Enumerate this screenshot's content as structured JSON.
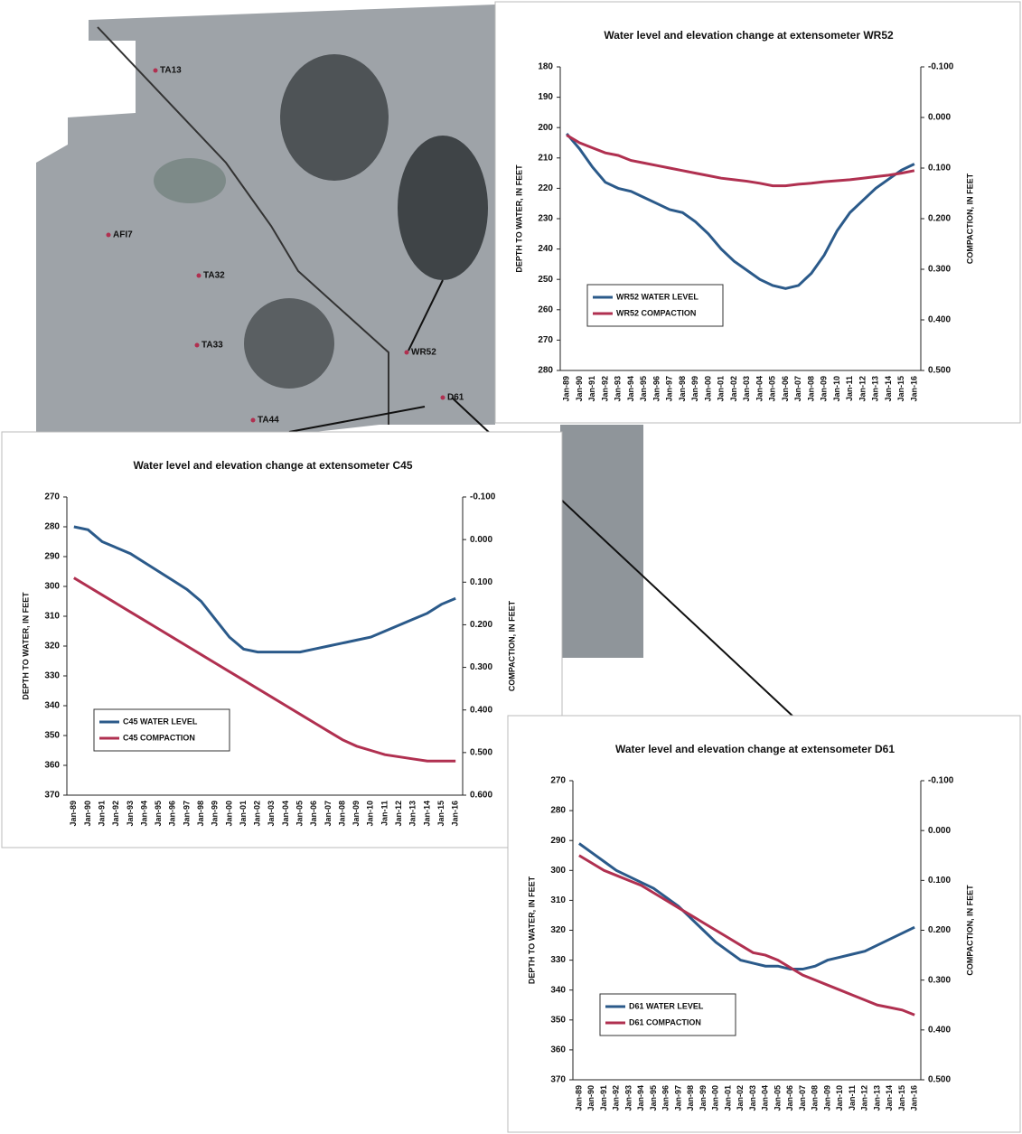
{
  "map": {
    "labels": [
      "TA13",
      "AFI7",
      "TA32",
      "TA33",
      "WR52",
      "D61",
      "TA44"
    ]
  },
  "chart_data": [
    {
      "type": "line",
      "title": "Water level and elevation change at extensometer WR52",
      "y_label": "DEPTH TO WATER, IN FEET",
      "y2_label": "COMPACTION, IN FEET",
      "categories": [
        "Jan-89",
        "Jan-90",
        "Jan-91",
        "Jan-92",
        "Jan-93",
        "Jan-94",
        "Jan-95",
        "Jan-96",
        "Jan-97",
        "Jan-98",
        "Jan-99",
        "Jan-00",
        "Jan-01",
        "Jan-02",
        "Jan-03",
        "Jan-04",
        "Jan-05",
        "Jan-06",
        "Jan-07",
        "Jan-08",
        "Jan-09",
        "Jan-10",
        "Jan-11",
        "Jan-12",
        "Jan-13",
        "Jan-14",
        "Jan-15",
        "Jan-16"
      ],
      "ylim": [
        180,
        280
      ],
      "yticks": [
        180,
        190,
        200,
        210,
        220,
        230,
        240,
        250,
        260,
        270,
        280
      ],
      "invert_y": true,
      "y2lim": [
        -0.1,
        0.5
      ],
      "y2ticks": [
        {
          "value": -0.1,
          "label": "-0.100"
        },
        {
          "value": 0,
          "label": "0.000"
        },
        {
          "value": 0.1,
          "label": "0.100"
        },
        {
          "value": 0.2,
          "label": "0.200"
        },
        {
          "value": 0.3,
          "label": "0.300"
        },
        {
          "value": 0.4,
          "label": "0.400"
        },
        {
          "value": 0.5,
          "label": "0.500"
        }
      ],
      "invert_y2": true,
      "legend": "lower left",
      "series": [
        {
          "name": "WR52 WATER LEVEL",
          "color": "#2b5a8a",
          "values": [
            202,
            207,
            213,
            218,
            220,
            221,
            223,
            225,
            227,
            228,
            231,
            235,
            240,
            244,
            247,
            250,
            252,
            253,
            252,
            248,
            242,
            234,
            228,
            224,
            220,
            217,
            214,
            212
          ]
        },
        {
          "name": "WR52 COMPACTION",
          "color": "#b03050",
          "axis": "y2",
          "values": [
            0.035,
            0.05,
            0.06,
            0.07,
            0.075,
            0.085,
            0.09,
            0.095,
            0.1,
            0.105,
            0.11,
            0.115,
            0.12,
            0.123,
            0.126,
            0.13,
            0.135,
            0.135,
            0.132,
            0.13,
            0.127,
            0.125,
            0.123,
            0.12,
            0.117,
            0.114,
            0.11,
            0.105
          ]
        }
      ]
    },
    {
      "type": "line",
      "title": "Water level and elevation change at extensometer C45",
      "y_label": "DEPTH TO WATER, IN FEET",
      "y2_label": "COMPACTION, IN FEET",
      "categories": [
        "Jan-89",
        "Jan-90",
        "Jan-91",
        "Jan-92",
        "Jan-93",
        "Jan-94",
        "Jan-95",
        "Jan-96",
        "Jan-97",
        "Jan-98",
        "Jan-99",
        "Jan-00",
        "Jan-01",
        "Jan-02",
        "Jan-03",
        "Jan-04",
        "Jan-05",
        "Jan-06",
        "Jan-07",
        "Jan-08",
        "Jan-09",
        "Jan-10",
        "Jan-11",
        "Jan-12",
        "Jan-13",
        "Jan-14",
        "Jan-15",
        "Jan-16"
      ],
      "ylim": [
        270,
        370
      ],
      "yticks": [
        270,
        280,
        290,
        300,
        310,
        320,
        330,
        340,
        350,
        360,
        370
      ],
      "invert_y": true,
      "y2lim": [
        -0.1,
        0.6
      ],
      "y2ticks": [
        {
          "value": -0.1,
          "label": "-0.100"
        },
        {
          "value": 0,
          "label": "0.000"
        },
        {
          "value": 0.1,
          "label": "0.100"
        },
        {
          "value": 0.2,
          "label": "0.200"
        },
        {
          "value": 0.3,
          "label": "0.300"
        },
        {
          "value": 0.4,
          "label": "0.400"
        },
        {
          "value": 0.5,
          "label": "0.500"
        },
        {
          "value": 0.6,
          "label": "0.600"
        }
      ],
      "invert_y2": true,
      "legend": "lower left",
      "series": [
        {
          "name": "C45 WATER LEVEL",
          "color": "#2b5a8a",
          "values": [
            280,
            281,
            285,
            287,
            289,
            292,
            295,
            298,
            301,
            305,
            311,
            317,
            321,
            322,
            322,
            322,
            322,
            321,
            320,
            319,
            318,
            317,
            315,
            313,
            311,
            309,
            306,
            304
          ]
        },
        {
          "name": "C45 COMPACTION",
          "color": "#b03050",
          "axis": "y2",
          "values": [
            0.09,
            0.11,
            0.13,
            0.15,
            0.17,
            0.19,
            0.21,
            0.23,
            0.25,
            0.27,
            0.29,
            0.31,
            0.33,
            0.35,
            0.37,
            0.39,
            0.41,
            0.43,
            0.45,
            0.47,
            0.485,
            0.495,
            0.505,
            0.51,
            0.515,
            0.52,
            0.52,
            0.52
          ]
        }
      ]
    },
    {
      "type": "line",
      "title": "Water level and elevation change at extensometer D61",
      "y_label": "DEPTH TO WATER, IN FEET",
      "y2_label": "COMPACTION, IN FEET",
      "categories": [
        "Jan-89",
        "Jan-90",
        "Jan-91",
        "Jan-92",
        "Jan-93",
        "Jan-94",
        "Jan-95",
        "Jan-96",
        "Jan-97",
        "Jan-98",
        "Jan-99",
        "Jan-00",
        "Jan-01",
        "Jan-02",
        "Jan-03",
        "Jan-04",
        "Jan-05",
        "Jan-06",
        "Jan-07",
        "Jan-08",
        "Jan-09",
        "Jan-10",
        "Jan-11",
        "Jan-12",
        "Jan-13",
        "Jan-14",
        "Jan-15",
        "Jan-16"
      ],
      "ylim": [
        270,
        370
      ],
      "yticks": [
        270,
        280,
        290,
        300,
        310,
        320,
        330,
        340,
        350,
        360,
        370
      ],
      "invert_y": true,
      "y2lim": [
        -0.1,
        0.5
      ],
      "y2ticks": [
        {
          "value": -0.1,
          "label": "-0.100"
        },
        {
          "value": 0,
          "label": "0.000"
        },
        {
          "value": 0.1,
          "label": "0.100"
        },
        {
          "value": 0.2,
          "label": "0.200"
        },
        {
          "value": 0.3,
          "label": "0.300"
        },
        {
          "value": 0.4,
          "label": "0.400"
        },
        {
          "value": 0.5,
          "label": "0.500"
        }
      ],
      "invert_y2": true,
      "legend": "lower left",
      "series": [
        {
          "name": "D61 WATER LEVEL",
          "color": "#2b5a8a",
          "values": [
            291,
            294,
            297,
            300,
            302,
            304,
            306,
            309,
            312,
            316,
            320,
            324,
            327,
            330,
            331,
            332,
            332,
            333,
            333,
            332,
            330,
            329,
            328,
            327,
            325,
            323,
            321,
            319
          ]
        },
        {
          "name": "D61 COMPACTION",
          "color": "#b03050",
          "axis": "y2",
          "values": [
            0.05,
            0.065,
            0.08,
            0.09,
            0.1,
            0.11,
            0.125,
            0.14,
            0.155,
            0.17,
            0.185,
            0.2,
            0.215,
            0.23,
            0.245,
            0.25,
            0.26,
            0.275,
            0.29,
            0.3,
            0.31,
            0.32,
            0.33,
            0.34,
            0.35,
            0.355,
            0.36,
            0.37
          ]
        }
      ]
    }
  ]
}
